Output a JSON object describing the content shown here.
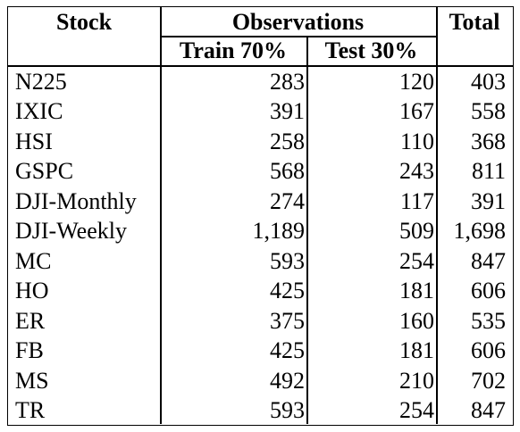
{
  "table": {
    "headers": {
      "stock": "Stock",
      "observations": "Observations",
      "total": "Total",
      "train": "Train 70%",
      "test": "Test 30%"
    },
    "rows": [
      {
        "stock": "N225",
        "train": "283",
        "test": "120",
        "total": "403"
      },
      {
        "stock": "IXIC",
        "train": "391",
        "test": "167",
        "total": "558"
      },
      {
        "stock": "HSI",
        "train": "258",
        "test": "110",
        "total": "368"
      },
      {
        "stock": "GSPC",
        "train": "568",
        "test": "243",
        "total": "811"
      },
      {
        "stock": "DJI-Monthly",
        "train": "274",
        "test": "117",
        "total": "391"
      },
      {
        "stock": "DJI-Weekly",
        "train": "1,189",
        "test": "509",
        "total": "1,698"
      },
      {
        "stock": "MC",
        "train": "593",
        "test": "254",
        "total": "847"
      },
      {
        "stock": "HO",
        "train": "425",
        "test": "181",
        "total": "606"
      },
      {
        "stock": "ER",
        "train": "375",
        "test": "160",
        "total": "535"
      },
      {
        "stock": "FB",
        "train": "425",
        "test": "181",
        "total": "606"
      },
      {
        "stock": "MS",
        "train": "492",
        "test": "210",
        "total": "702"
      },
      {
        "stock": "TR",
        "train": "593",
        "test": "254",
        "total": "847"
      }
    ]
  }
}
